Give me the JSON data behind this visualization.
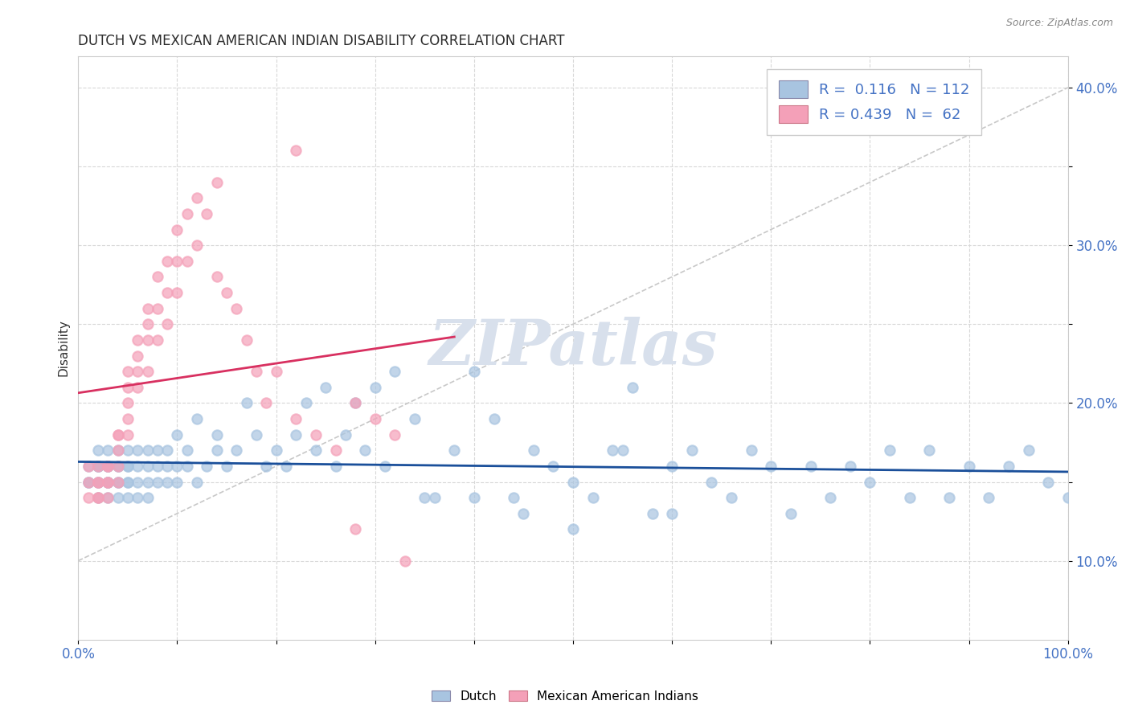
{
  "title": "DUTCH VS MEXICAN AMERICAN INDIAN DISABILITY CORRELATION CHART",
  "source": "Source: ZipAtlas.com",
  "ylabel": "Disability",
  "xlim": [
    0,
    1.0
  ],
  "ylim": [
    0.05,
    0.42
  ],
  "legend_R_dutch": "0.116",
  "legend_N_dutch": "112",
  "legend_R_mexican": "0.439",
  "legend_N_mexican": "62",
  "dutch_color": "#a8c4e0",
  "mexican_color": "#f4a0b8",
  "dutch_line_color": "#1a4f9a",
  "mexican_line_color": "#d83060",
  "ref_line_color": "#c8c8c8",
  "watermark_color": "#d8e0ec",
  "title_color": "#2a2a2a",
  "axis_label_color": "#4472c4",
  "grid_color": "#d8d8d8",
  "source_color": "#888888",
  "background": "#ffffff",
  "dutch_x": [
    0.01,
    0.01,
    0.01,
    0.02,
    0.02,
    0.02,
    0.02,
    0.02,
    0.02,
    0.02,
    0.03,
    0.03,
    0.03,
    0.03,
    0.03,
    0.03,
    0.03,
    0.03,
    0.04,
    0.04,
    0.04,
    0.04,
    0.04,
    0.04,
    0.05,
    0.05,
    0.05,
    0.05,
    0.05,
    0.05,
    0.06,
    0.06,
    0.06,
    0.06,
    0.07,
    0.07,
    0.07,
    0.07,
    0.08,
    0.08,
    0.08,
    0.09,
    0.09,
    0.09,
    0.1,
    0.1,
    0.1,
    0.11,
    0.11,
    0.12,
    0.12,
    0.13,
    0.14,
    0.14,
    0.15,
    0.16,
    0.17,
    0.18,
    0.19,
    0.2,
    0.21,
    0.22,
    0.23,
    0.24,
    0.25,
    0.26,
    0.27,
    0.28,
    0.29,
    0.3,
    0.31,
    0.32,
    0.34,
    0.36,
    0.38,
    0.4,
    0.42,
    0.44,
    0.46,
    0.48,
    0.5,
    0.52,
    0.54,
    0.56,
    0.58,
    0.6,
    0.62,
    0.64,
    0.66,
    0.68,
    0.7,
    0.72,
    0.74,
    0.76,
    0.78,
    0.8,
    0.82,
    0.84,
    0.86,
    0.88,
    0.9,
    0.92,
    0.94,
    0.96,
    0.98,
    1.0,
    0.35,
    0.4,
    0.45,
    0.5,
    0.55,
    0.6
  ],
  "dutch_y": [
    0.15,
    0.16,
    0.15,
    0.16,
    0.15,
    0.16,
    0.15,
    0.14,
    0.17,
    0.16,
    0.16,
    0.15,
    0.16,
    0.15,
    0.14,
    0.16,
    0.17,
    0.15,
    0.17,
    0.15,
    0.16,
    0.15,
    0.14,
    0.16,
    0.16,
    0.15,
    0.17,
    0.15,
    0.16,
    0.14,
    0.17,
    0.16,
    0.15,
    0.14,
    0.17,
    0.15,
    0.16,
    0.14,
    0.16,
    0.17,
    0.15,
    0.16,
    0.17,
    0.15,
    0.18,
    0.16,
    0.15,
    0.17,
    0.16,
    0.19,
    0.15,
    0.16,
    0.18,
    0.17,
    0.16,
    0.17,
    0.2,
    0.18,
    0.16,
    0.17,
    0.16,
    0.18,
    0.2,
    0.17,
    0.21,
    0.16,
    0.18,
    0.2,
    0.17,
    0.21,
    0.16,
    0.22,
    0.19,
    0.14,
    0.17,
    0.22,
    0.19,
    0.14,
    0.17,
    0.16,
    0.15,
    0.14,
    0.17,
    0.21,
    0.13,
    0.16,
    0.17,
    0.15,
    0.14,
    0.17,
    0.16,
    0.13,
    0.16,
    0.14,
    0.16,
    0.15,
    0.17,
    0.14,
    0.17,
    0.14,
    0.16,
    0.14,
    0.16,
    0.17,
    0.15,
    0.14,
    0.14,
    0.14,
    0.13,
    0.12,
    0.17,
    0.13
  ],
  "mexican_x": [
    0.01,
    0.01,
    0.01,
    0.02,
    0.02,
    0.02,
    0.02,
    0.02,
    0.03,
    0.03,
    0.03,
    0.03,
    0.03,
    0.04,
    0.04,
    0.04,
    0.04,
    0.04,
    0.05,
    0.05,
    0.05,
    0.05,
    0.05,
    0.06,
    0.06,
    0.06,
    0.06,
    0.07,
    0.07,
    0.07,
    0.07,
    0.08,
    0.08,
    0.08,
    0.09,
    0.09,
    0.09,
    0.1,
    0.1,
    0.1,
    0.11,
    0.11,
    0.12,
    0.12,
    0.13,
    0.14,
    0.15,
    0.16,
    0.17,
    0.18,
    0.19,
    0.2,
    0.22,
    0.24,
    0.26,
    0.28,
    0.3,
    0.32,
    0.14,
    0.22,
    0.28,
    0.33
  ],
  "mexican_y": [
    0.15,
    0.14,
    0.16,
    0.15,
    0.14,
    0.16,
    0.15,
    0.14,
    0.16,
    0.15,
    0.14,
    0.15,
    0.16,
    0.18,
    0.16,
    0.17,
    0.15,
    0.18,
    0.2,
    0.21,
    0.19,
    0.22,
    0.18,
    0.22,
    0.24,
    0.21,
    0.23,
    0.24,
    0.26,
    0.22,
    0.25,
    0.26,
    0.28,
    0.24,
    0.27,
    0.29,
    0.25,
    0.29,
    0.27,
    0.31,
    0.29,
    0.32,
    0.33,
    0.3,
    0.32,
    0.28,
    0.27,
    0.26,
    0.24,
    0.22,
    0.2,
    0.22,
    0.19,
    0.18,
    0.17,
    0.2,
    0.19,
    0.18,
    0.34,
    0.36,
    0.12,
    0.1
  ]
}
